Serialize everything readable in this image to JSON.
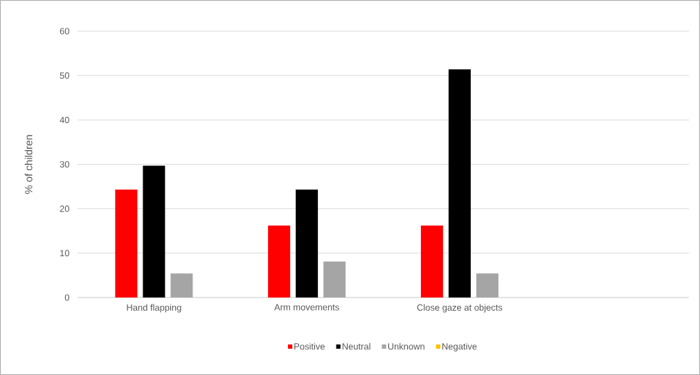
{
  "chart_data": {
    "type": "bar",
    "ylabel": "% of children",
    "categories": [
      "Hand flapping",
      "Arm movements",
      "Close gaze at objects",
      null
    ],
    "series": [
      {
        "name": "Positive",
        "color": "#ff0000",
        "values": [
          24.3,
          16.2,
          16.2,
          null
        ]
      },
      {
        "name": "Neutral",
        "color": "#000000",
        "values": [
          29.7,
          24.3,
          51.4,
          null
        ]
      },
      {
        "name": "Unknown",
        "color": "#a5a5a5",
        "values": [
          5.4,
          8.1,
          5.4,
          null
        ]
      },
      {
        "name": "Negative",
        "color": "#ffc000",
        "values": [
          null,
          null,
          null,
          null
        ]
      }
    ],
    "ylim": [
      0,
      60
    ],
    "yticks": [
      0,
      10,
      20,
      30,
      40,
      50,
      60
    ],
    "grid": "y",
    "legend": "bottom"
  }
}
